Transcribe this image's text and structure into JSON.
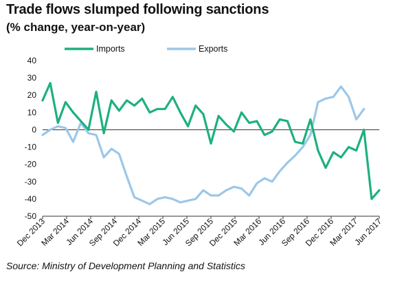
{
  "chart_data": {
    "type": "line",
    "title": "Trade flows slumped following sanctions",
    "subtitle": "(% change, year-on-year)",
    "source": "Source: Ministry of Development Planning and Statistics",
    "ylim": [
      -50,
      40
    ],
    "yticks": [
      40,
      30,
      20,
      10,
      0,
      -10,
      -20,
      -30,
      -40,
      -50
    ],
    "xtick_labels": [
      "Dec 2013",
      "Mar 2014",
      "Jun 2014",
      "Sep 2014",
      "Dec 2014",
      "Mar 2015",
      "Jun 2015",
      "Sep 2015",
      "Dec 2015",
      "Mar 2016",
      "Jun 2016",
      "Sep 2016",
      "Dec 2016",
      "Mar 2017",
      "Jun 2017"
    ],
    "grid": false,
    "legend_position": "top",
    "series": [
      {
        "name": "Imports",
        "color": "#1db07f",
        "values": [
          17,
          27,
          4,
          16,
          10,
          5,
          0,
          22,
          -2,
          17,
          11,
          17,
          14,
          18,
          10,
          12,
          12,
          19,
          10,
          2,
          14,
          9,
          -8,
          8,
          3,
          -1,
          10,
          4,
          5,
          -3,
          -1,
          6,
          5,
          -7,
          -8,
          6,
          -12,
          -22,
          -13,
          -16,
          -10,
          -12,
          0,
          -40,
          -35
        ]
      },
      {
        "name": "Exports",
        "color": "#9cc7e8",
        "values": [
          -3,
          0,
          2,
          1,
          -7,
          4,
          -2,
          -3,
          -16,
          -11,
          -14,
          -27,
          -39,
          -41,
          -43,
          -40,
          -39,
          -40,
          -42,
          -41,
          -40,
          -35,
          -38,
          -38,
          -35,
          -33,
          -34,
          -38,
          -31,
          -28,
          -30,
          -24,
          -19,
          -15,
          -10,
          -3,
          16,
          18,
          19,
          25,
          19,
          6,
          12
        ]
      }
    ]
  }
}
